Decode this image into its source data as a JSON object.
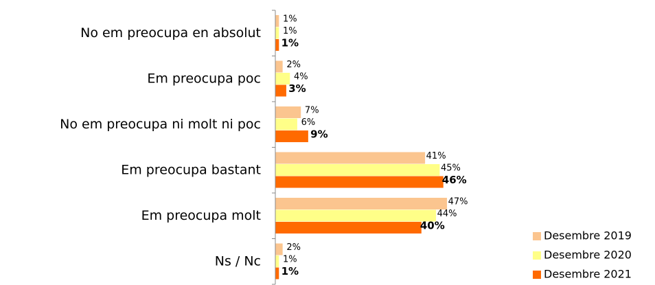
{
  "chart_data": {
    "type": "bar",
    "orientation": "horizontal",
    "categories": [
      "No em preocupa en absolut",
      "Em preocupa poc",
      "No em preocupa ni molt ni poc",
      "Em preocupa bastant",
      "Em preocupa molt",
      "Ns / Nc"
    ],
    "series": [
      {
        "name": "Desembre 2019",
        "color": "#fbc58f",
        "values": [
          1,
          2,
          7,
          41,
          47,
          2
        ],
        "value_labels": [
          "1%",
          "2%",
          "7%",
          "41%",
          "47%",
          "2%"
        ]
      },
      {
        "name": "Desembre 2020",
        "color": "#ffff88",
        "values": [
          1,
          4,
          6,
          45,
          44,
          1
        ],
        "value_labels": [
          "1%",
          "4%",
          "6%",
          "45%",
          "44%",
          "1%"
        ]
      },
      {
        "name": "Desembre 2021",
        "color": "#ff6a00",
        "values": [
          1,
          3,
          9,
          46,
          40,
          1
        ],
        "value_labels": [
          "1%",
          "3%",
          "9%",
          "46%",
          "40%",
          "1%"
        ],
        "bold_labels": true
      }
    ],
    "xlim": [
      0,
      100
    ],
    "legend": "bottom-right"
  }
}
